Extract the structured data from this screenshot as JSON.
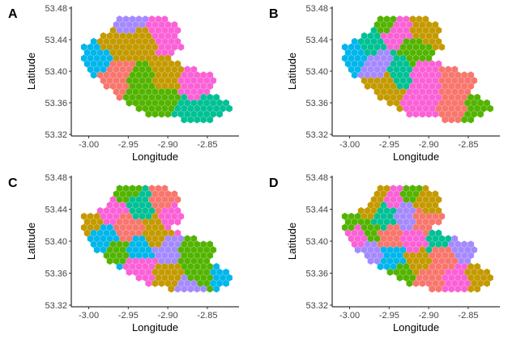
{
  "chart_data": {
    "type": "map",
    "colors": [
      "#F8766D",
      "#C49A00",
      "#53B400",
      "#00C094",
      "#00B6EB",
      "#A58AFF",
      "#FB61D7"
    ],
    "axes": {
      "xlabel": "Longitude",
      "ylabel": "Latitude",
      "xlim": [
        -3.02,
        -2.81
      ],
      "ylim": [
        53.32,
        53.48
      ],
      "xticks": [
        -3.0,
        -2.95,
        -2.9,
        -2.85
      ],
      "xtick_labels": [
        "-3.00",
        "-2.95",
        "-2.90",
        "-2.85"
      ],
      "yticks": [
        53.32,
        53.36,
        53.4,
        53.44,
        53.48
      ],
      "ytick_labels": [
        "53.32",
        "53.36",
        "53.40",
        "53.44",
        "53.48"
      ]
    },
    "outline": [
      [
        -3.008,
        53.437
      ],
      [
        -2.99,
        53.438
      ],
      [
        -2.975,
        53.45
      ],
      [
        -2.962,
        53.468
      ],
      [
        -2.948,
        53.472
      ],
      [
        -2.93,
        53.473
      ],
      [
        -2.91,
        53.468
      ],
      [
        -2.896,
        53.466
      ],
      [
        -2.888,
        53.462
      ],
      [
        -2.886,
        53.455
      ],
      [
        -2.883,
        53.448
      ],
      [
        -2.885,
        53.44
      ],
      [
        -2.88,
        53.432
      ],
      [
        -2.884,
        53.425
      ],
      [
        -2.893,
        53.422
      ],
      [
        -2.892,
        53.415
      ],
      [
        -2.88,
        53.408
      ],
      [
        -2.868,
        53.404
      ],
      [
        -2.856,
        53.401
      ],
      [
        -2.846,
        53.397
      ],
      [
        -2.84,
        53.386
      ],
      [
        -2.842,
        53.378
      ],
      [
        -2.85,
        53.373
      ],
      [
        -2.838,
        53.368
      ],
      [
        -2.83,
        53.365
      ],
      [
        -2.82,
        53.364
      ],
      [
        -2.818,
        53.351
      ],
      [
        -2.826,
        53.347
      ],
      [
        -2.84,
        53.338
      ],
      [
        -2.86,
        53.336
      ],
      [
        -2.885,
        53.339
      ],
      [
        -2.905,
        53.341
      ],
      [
        -2.925,
        53.345
      ],
      [
        -2.945,
        53.356
      ],
      [
        -2.965,
        53.369
      ],
      [
        -2.985,
        53.383
      ],
      [
        -2.997,
        53.398
      ],
      [
        -3.005,
        53.412
      ],
      [
        -3.01,
        53.427
      ]
    ],
    "panels": [
      {
        "label": "A",
        "regions": [
          {
            "seed": [
              -2.995,
              53.415
            ],
            "color": 4
          },
          {
            "seed": [
              -2.962,
              53.437
            ],
            "color": 1
          },
          {
            "seed": [
              -2.953,
              53.462
            ],
            "color": 5
          },
          {
            "seed": [
              -2.908,
              53.446
            ],
            "color": 6
          },
          {
            "seed": [
              -2.93,
              53.438
            ],
            "color": 1
          },
          {
            "seed": [
              -2.965,
              53.393
            ],
            "color": 0
          },
          {
            "seed": [
              -2.935,
              53.383
            ],
            "color": 2
          },
          {
            "seed": [
              -2.9,
              53.395
            ],
            "color": 1
          },
          {
            "seed": [
              -2.867,
              53.385
            ],
            "color": 6
          },
          {
            "seed": [
              -2.898,
              53.36
            ],
            "color": 2
          },
          {
            "seed": [
              -2.845,
              53.352
            ],
            "color": 3
          },
          {
            "seed": [
              -2.88,
              53.348
            ],
            "color": 3
          }
        ]
      },
      {
        "label": "B",
        "regions": [
          {
            "seed": [
              -2.995,
              53.42
            ],
            "color": 4
          },
          {
            "seed": [
              -2.975,
              53.436
            ],
            "color": 3
          },
          {
            "seed": [
              -2.958,
              53.465
            ],
            "color": 2
          },
          {
            "seed": [
              -2.938,
              53.45
            ],
            "color": 6
          },
          {
            "seed": [
              -2.905,
              53.452
            ],
            "color": 1
          },
          {
            "seed": [
              -2.92,
              53.425
            ],
            "color": 2
          },
          {
            "seed": [
              -2.965,
              53.41
            ],
            "color": 5
          },
          {
            "seed": [
              -2.935,
              53.402
            ],
            "color": 3
          },
          {
            "seed": [
              -2.958,
              53.378
            ],
            "color": 1
          },
          {
            "seed": [
              -2.905,
              53.395
            ],
            "color": 6
          },
          {
            "seed": [
              -2.87,
              53.395
            ],
            "color": 0
          },
          {
            "seed": [
              -2.905,
              53.365
            ],
            "color": 6
          },
          {
            "seed": [
              -2.87,
              53.36
            ],
            "color": 0
          },
          {
            "seed": [
              -2.838,
              53.352
            ],
            "color": 2
          }
        ]
      },
      {
        "label": "C",
        "regions": [
          {
            "seed": [
              -3.0,
              53.425
            ],
            "color": 1
          },
          {
            "seed": [
              -2.985,
              53.403
            ],
            "color": 4
          },
          {
            "seed": [
              -2.97,
              53.44
            ],
            "color": 6
          },
          {
            "seed": [
              -2.955,
              53.463
            ],
            "color": 2
          },
          {
            "seed": [
              -2.935,
              53.445
            ],
            "color": 3
          },
          {
            "seed": [
              -2.905,
              53.455
            ],
            "color": 0
          },
          {
            "seed": [
              -2.893,
              53.43
            ],
            "color": 6
          },
          {
            "seed": [
              -2.95,
              53.418
            ],
            "color": 0
          },
          {
            "seed": [
              -2.915,
              53.41
            ],
            "color": 1
          },
          {
            "seed": [
              -2.965,
              53.383
            ],
            "color": 2
          },
          {
            "seed": [
              -2.935,
              53.39
            ],
            "color": 4
          },
          {
            "seed": [
              -2.898,
              53.39
            ],
            "color": 5
          },
          {
            "seed": [
              -2.935,
              53.365
            ],
            "color": 6
          },
          {
            "seed": [
              -2.9,
              53.358
            ],
            "color": 1
          },
          {
            "seed": [
              -2.87,
              53.385
            ],
            "color": 2
          },
          {
            "seed": [
              -2.86,
              53.355
            ],
            "color": 2
          },
          {
            "seed": [
              -2.83,
              53.355
            ],
            "color": 4
          },
          {
            "seed": [
              -2.87,
              53.34
            ],
            "color": 5
          },
          {
            "seed": [
              -2.975,
              53.362
            ],
            "color": 4
          }
        ]
      },
      {
        "label": "D",
        "regions": [
          {
            "seed": [
              -3.002,
              53.428
            ],
            "color": 2
          },
          {
            "seed": [
              -2.992,
              53.405
            ],
            "color": 6
          },
          {
            "seed": [
              -2.978,
              53.442
            ],
            "color": 1
          },
          {
            "seed": [
              -2.96,
              53.466
            ],
            "color": 1
          },
          {
            "seed": [
              -2.943,
              53.455
            ],
            "color": 6
          },
          {
            "seed": [
              -2.922,
              53.462
            ],
            "color": 2
          },
          {
            "seed": [
              -2.9,
              53.45
            ],
            "color": 1
          },
          {
            "seed": [
              -2.958,
              53.43
            ],
            "color": 3
          },
          {
            "seed": [
              -2.93,
              53.432
            ],
            "color": 5
          },
          {
            "seed": [
              -2.905,
              53.425
            ],
            "color": 0
          },
          {
            "seed": [
              -2.975,
              53.412
            ],
            "color": 2
          },
          {
            "seed": [
              -2.95,
              53.405
            ],
            "color": 0
          },
          {
            "seed": [
              -2.92,
              53.4
            ],
            "color": 6
          },
          {
            "seed": [
              -2.888,
              53.405
            ],
            "color": 3
          },
          {
            "seed": [
              -2.975,
              53.385
            ],
            "color": 5
          },
          {
            "seed": [
              -2.945,
              53.38
            ],
            "color": 4
          },
          {
            "seed": [
              -2.915,
              53.375
            ],
            "color": 1
          },
          {
            "seed": [
              -2.88,
              53.38
            ],
            "color": 0
          },
          {
            "seed": [
              -2.86,
              53.392
            ],
            "color": 5
          },
          {
            "seed": [
              -2.935,
              53.358
            ],
            "color": 2
          },
          {
            "seed": [
              -2.9,
              53.35
            ],
            "color": 0
          },
          {
            "seed": [
              -2.865,
              53.35
            ],
            "color": 6
          },
          {
            "seed": [
              -2.835,
              53.355
            ],
            "color": 1
          }
        ]
      }
    ]
  }
}
